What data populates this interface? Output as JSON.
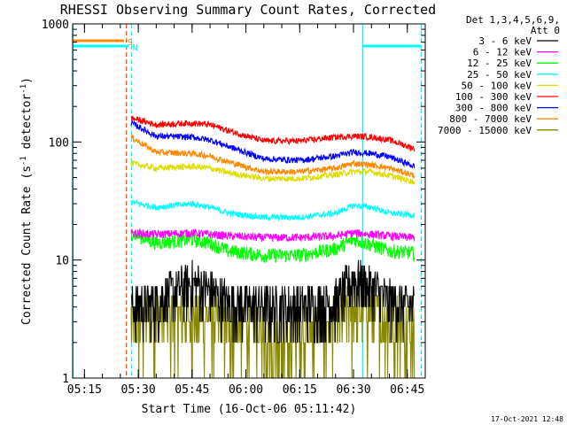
{
  "chart_data": {
    "type": "line",
    "title": "RHESSI Observing Summary Count Rates, Corrected",
    "xlabel": "Start Time (16-Oct-06 05:11:42)",
    "ylabel": "Corrected Count Rate (s⁻¹ detector⁻¹)",
    "ylabel_parts": {
      "main": "Corrected Count Rate (s",
      "sup1": "-1",
      "mid": " detector",
      "sup2": "-1",
      "end": ")"
    },
    "y_scale": "log",
    "ylim": [
      1,
      1000
    ],
    "y_ticks": [
      {
        "value": 1,
        "label": "1"
      },
      {
        "value": 10,
        "label": "10"
      },
      {
        "value": 100,
        "label": "100"
      },
      {
        "value": 1000,
        "label": "1000"
      }
    ],
    "xlim_minutes": [
      311.7,
      410.0
    ],
    "x_ticks": [
      {
        "minutes": 315,
        "label": "05:15"
      },
      {
        "minutes": 330,
        "label": "05:30"
      },
      {
        "minutes": 345,
        "label": "05:45"
      },
      {
        "minutes": 360,
        "label": "06:00"
      },
      {
        "minutes": 375,
        "label": "06:15"
      },
      {
        "minutes": 390,
        "label": "06:30"
      },
      {
        "minutes": 405,
        "label": "06:45"
      }
    ],
    "legend_position": "right",
    "legend_header": [
      "Det 1,3,4,5,6,9,",
      "Att 0"
    ],
    "series": [
      {
        "name": "3 - 6 keV",
        "color": "#000000",
        "values": [
          {
            "x": 328,
            "y": 4.0
          },
          {
            "x": 335,
            "y": 4.5
          },
          {
            "x": 345,
            "y": 6.5
          },
          {
            "x": 355,
            "y": 4.5
          },
          {
            "x": 365,
            "y": 4.0
          },
          {
            "x": 375,
            "y": 4.0
          },
          {
            "x": 385,
            "y": 4.5
          },
          {
            "x": 390,
            "y": 7.0
          },
          {
            "x": 395,
            "y": 6.0
          },
          {
            "x": 400,
            "y": 4.5
          },
          {
            "x": 407,
            "y": 4.0
          }
        ]
      },
      {
        "name": "6 - 12 keV",
        "color": "#ff00ff",
        "values": [
          {
            "x": 328,
            "y": 17
          },
          {
            "x": 335,
            "y": 16.5
          },
          {
            "x": 345,
            "y": 17
          },
          {
            "x": 355,
            "y": 16
          },
          {
            "x": 365,
            "y": 15.5
          },
          {
            "x": 375,
            "y": 15.5
          },
          {
            "x": 385,
            "y": 16
          },
          {
            "x": 390,
            "y": 17
          },
          {
            "x": 395,
            "y": 16.5
          },
          {
            "x": 400,
            "y": 16
          },
          {
            "x": 407,
            "y": 15.5
          }
        ]
      },
      {
        "name": "12 - 25 keV",
        "color": "#00ff00",
        "values": [
          {
            "x": 328,
            "y": 17
          },
          {
            "x": 335,
            "y": 14
          },
          {
            "x": 345,
            "y": 15
          },
          {
            "x": 350,
            "y": 14
          },
          {
            "x": 355,
            "y": 12
          },
          {
            "x": 365,
            "y": 11
          },
          {
            "x": 375,
            "y": 11
          },
          {
            "x": 385,
            "y": 12.5
          },
          {
            "x": 390,
            "y": 15
          },
          {
            "x": 395,
            "y": 13.5
          },
          {
            "x": 400,
            "y": 12
          },
          {
            "x": 407,
            "y": 11.5
          }
        ]
      },
      {
        "name": "25 - 50 keV",
        "color": "#00ffff",
        "values": [
          {
            "x": 328,
            "y": 31
          },
          {
            "x": 335,
            "y": 28
          },
          {
            "x": 345,
            "y": 30
          },
          {
            "x": 350,
            "y": 28
          },
          {
            "x": 355,
            "y": 25
          },
          {
            "x": 365,
            "y": 23
          },
          {
            "x": 375,
            "y": 23
          },
          {
            "x": 385,
            "y": 25
          },
          {
            "x": 390,
            "y": 29
          },
          {
            "x": 395,
            "y": 28
          },
          {
            "x": 400,
            "y": 25
          },
          {
            "x": 407,
            "y": 24
          }
        ]
      },
      {
        "name": "50 - 100 keV",
        "color": "#dddd00",
        "values": [
          {
            "x": 328,
            "y": 66
          },
          {
            "x": 335,
            "y": 60
          },
          {
            "x": 345,
            "y": 62
          },
          {
            "x": 350,
            "y": 60
          },
          {
            "x": 355,
            "y": 55
          },
          {
            "x": 365,
            "y": 49
          },
          {
            "x": 375,
            "y": 49
          },
          {
            "x": 385,
            "y": 53
          },
          {
            "x": 390,
            "y": 56
          },
          {
            "x": 395,
            "y": 56
          },
          {
            "x": 400,
            "y": 52
          },
          {
            "x": 407,
            "y": 46
          }
        ]
      },
      {
        "name": "100 - 300 keV",
        "color": "#ff0000",
        "values": [
          {
            "x": 328,
            "y": 160
          },
          {
            "x": 335,
            "y": 140
          },
          {
            "x": 345,
            "y": 145
          },
          {
            "x": 350,
            "y": 140
          },
          {
            "x": 355,
            "y": 125
          },
          {
            "x": 365,
            "y": 102
          },
          {
            "x": 375,
            "y": 102
          },
          {
            "x": 385,
            "y": 110
          },
          {
            "x": 390,
            "y": 112
          },
          {
            "x": 395,
            "y": 110
          },
          {
            "x": 400,
            "y": 104
          },
          {
            "x": 407,
            "y": 88
          }
        ]
      },
      {
        "name": "300 - 800 keV",
        "color": "#0000ff",
        "values": [
          {
            "x": 328,
            "y": 145
          },
          {
            "x": 335,
            "y": 112
          },
          {
            "x": 345,
            "y": 110
          },
          {
            "x": 350,
            "y": 104
          },
          {
            "x": 355,
            "y": 92
          },
          {
            "x": 365,
            "y": 72
          },
          {
            "x": 375,
            "y": 70
          },
          {
            "x": 385,
            "y": 76
          },
          {
            "x": 390,
            "y": 82
          },
          {
            "x": 395,
            "y": 80
          },
          {
            "x": 400,
            "y": 75
          },
          {
            "x": 407,
            "y": 62
          }
        ]
      },
      {
        "name": "800 - 7000 keV",
        "color": "#ff8800",
        "values": [
          {
            "x": 328,
            "y": 110
          },
          {
            "x": 335,
            "y": 82
          },
          {
            "x": 345,
            "y": 80
          },
          {
            "x": 350,
            "y": 76
          },
          {
            "x": 355,
            "y": 68
          },
          {
            "x": 365,
            "y": 56
          },
          {
            "x": 375,
            "y": 56
          },
          {
            "x": 385,
            "y": 60
          },
          {
            "x": 390,
            "y": 66
          },
          {
            "x": 395,
            "y": 64
          },
          {
            "x": 400,
            "y": 60
          },
          {
            "x": 407,
            "y": 52
          }
        ]
      },
      {
        "name": "7000 - 15000 keV",
        "color": "#888800",
        "values": [
          {
            "x": 328,
            "y": 3.0
          },
          {
            "x": 335,
            "y": 3.5
          },
          {
            "x": 345,
            "y": 3.5
          },
          {
            "x": 355,
            "y": 3.0
          },
          {
            "x": 365,
            "y": 2.5
          },
          {
            "x": 370,
            "y": 1.8
          },
          {
            "x": 375,
            "y": 2.5
          },
          {
            "x": 385,
            "y": 3.0
          },
          {
            "x": 390,
            "y": 4.0
          },
          {
            "x": 395,
            "y": 3.8
          },
          {
            "x": 400,
            "y": 3.2
          },
          {
            "x": 407,
            "y": 3.0
          }
        ]
      }
    ],
    "flags": [
      {
        "label": "S",
        "color": "#ff8800",
        "y": 720,
        "segments": [
          [
            311.7,
            326.0
          ]
        ]
      },
      {
        "label": "N",
        "color": "#00ffff",
        "y": 650,
        "segments": [
          [
            311.7,
            327.4
          ],
          [
            392.6,
            408.9
          ]
        ]
      }
    ],
    "markers": [
      {
        "minutes": 311.8,
        "color": "#00ffff",
        "style": "solid"
      },
      {
        "minutes": 326.7,
        "color": "#ff4400",
        "style": "dashed"
      },
      {
        "minutes": 328.1,
        "color": "#00ffff",
        "style": "dashed"
      },
      {
        "minutes": 392.6,
        "color": "#00ffff",
        "style": "solid"
      },
      {
        "minutes": 408.9,
        "color": "#00ffff",
        "style": "dashed"
      }
    ],
    "footer": "17-Oct-2021 12:48"
  }
}
